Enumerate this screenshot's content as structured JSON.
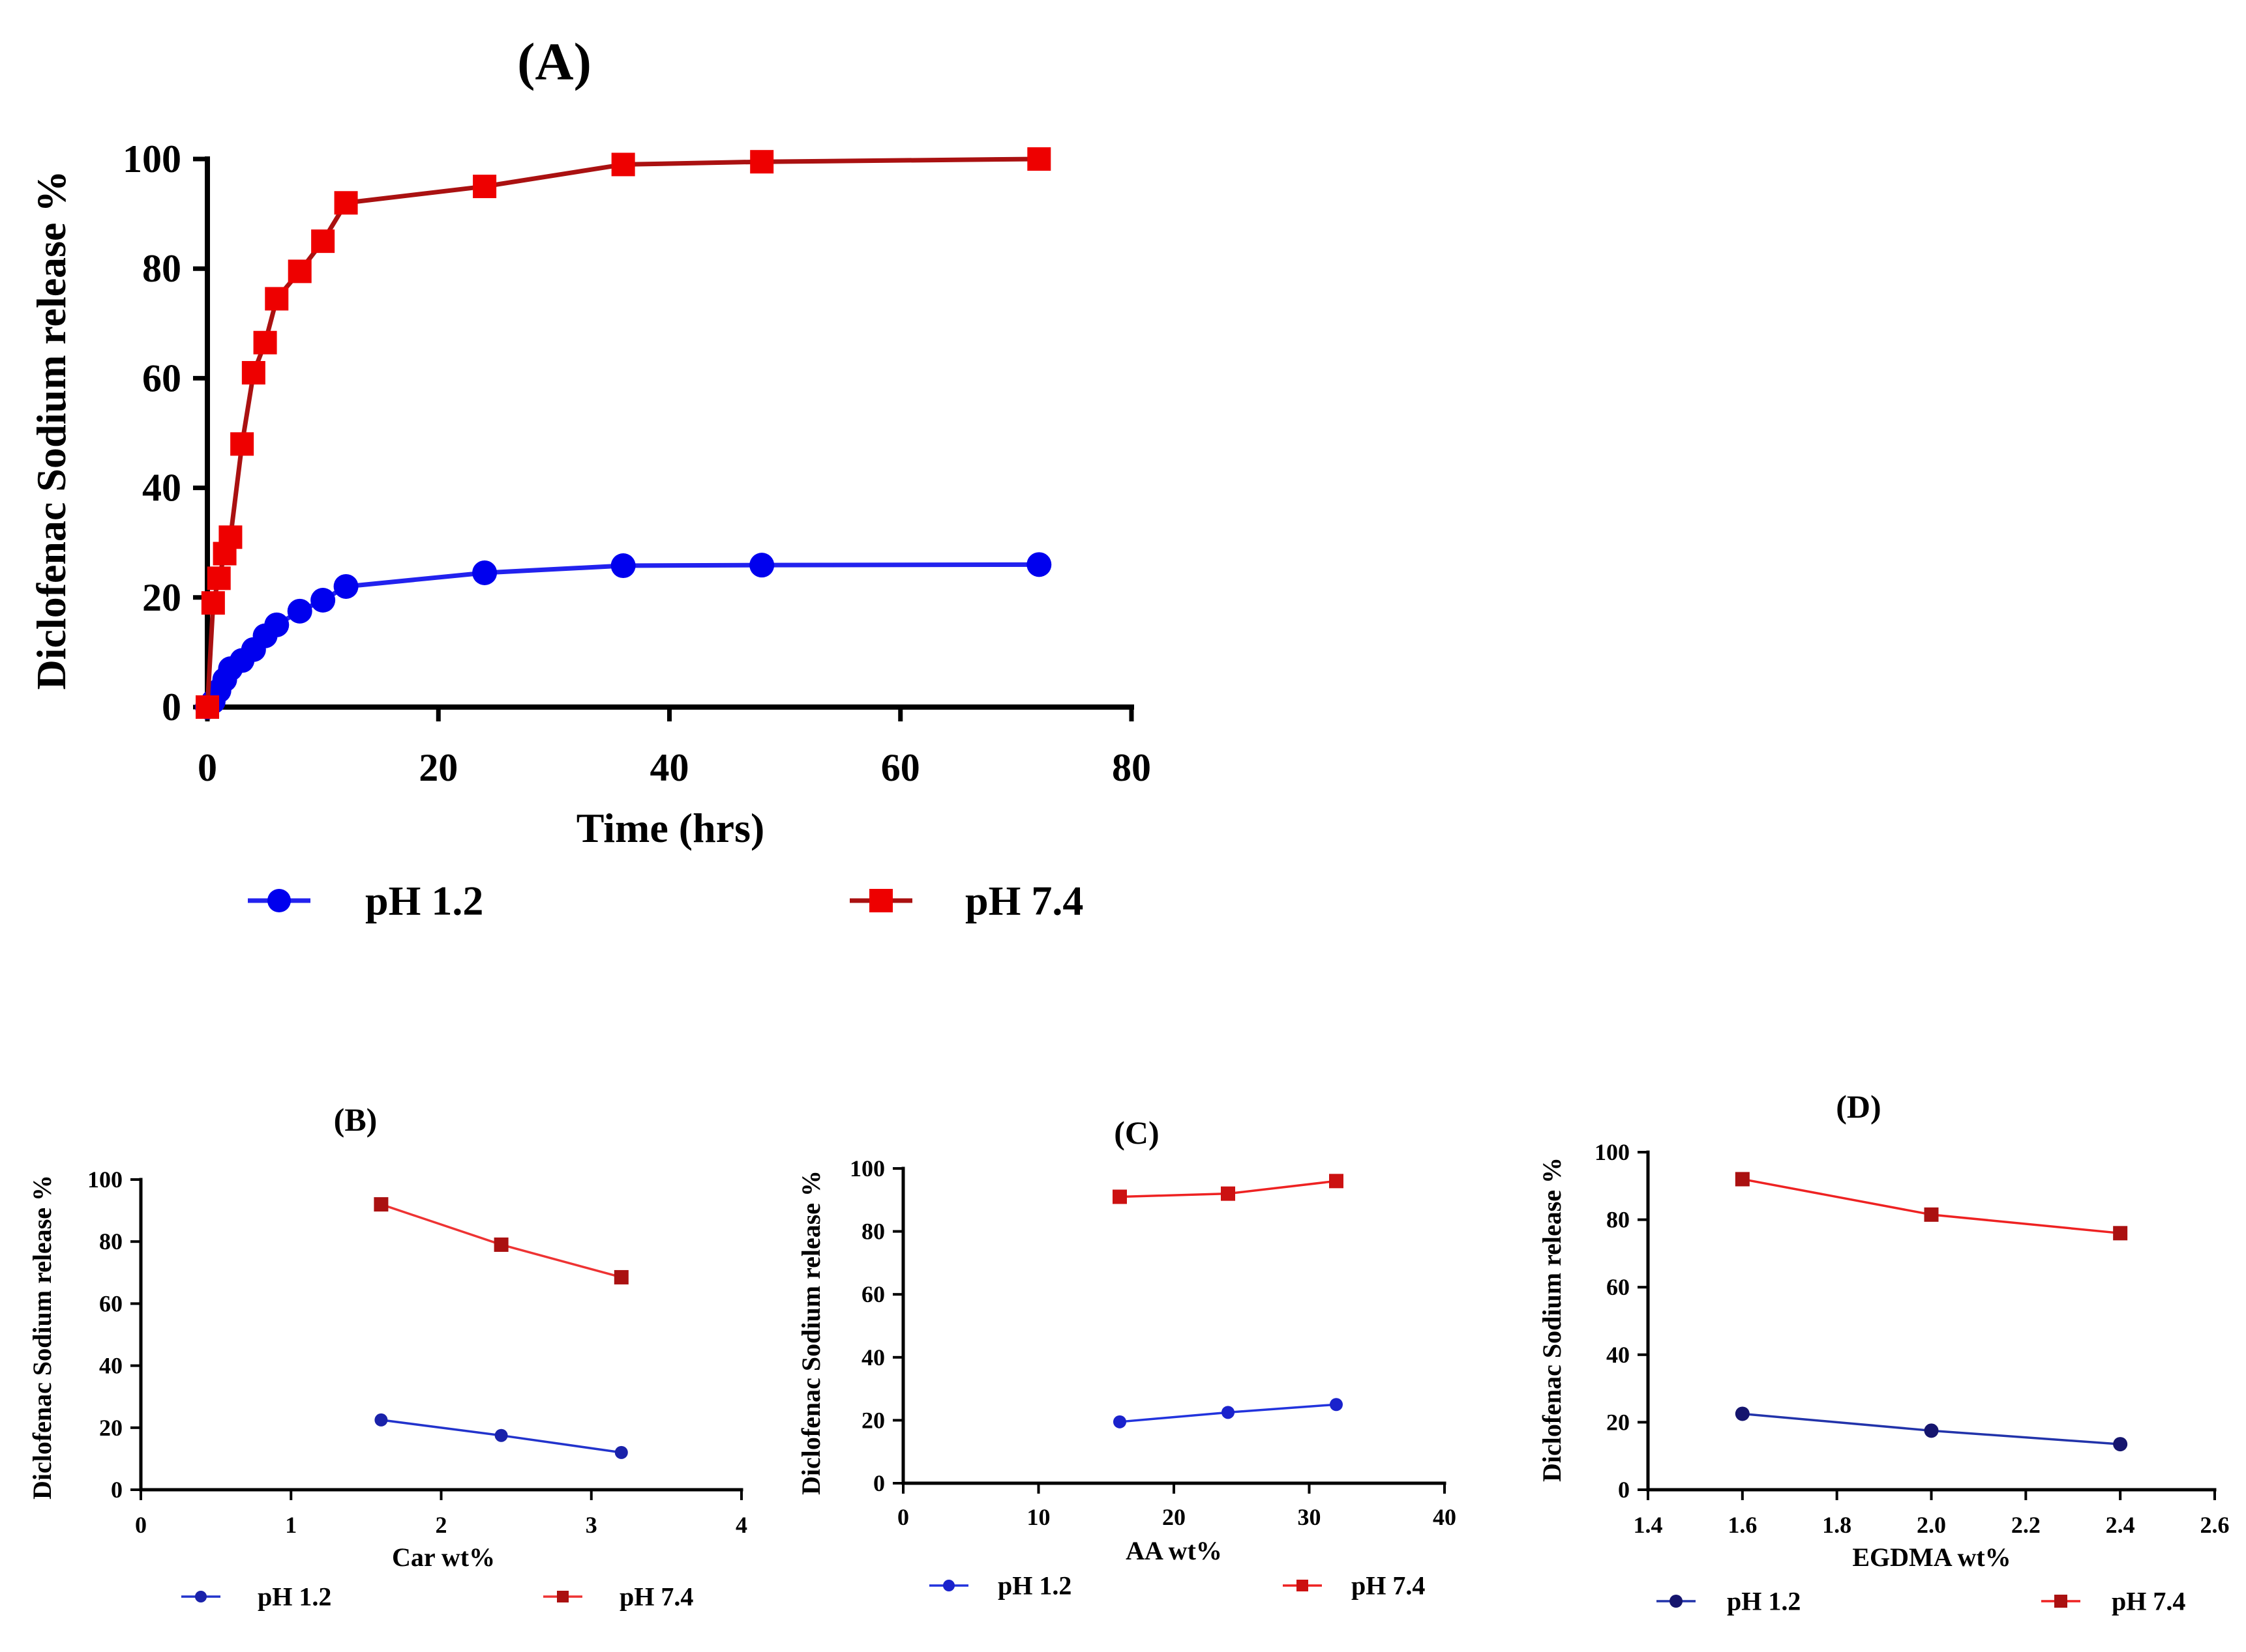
{
  "chart_data": [
    {
      "panel": "(A)",
      "type": "line",
      "title": "(A)",
      "xlabel": "Time (hrs)",
      "ylabel": "Diclofenac Sodium release %",
      "xlim": [
        0,
        80
      ],
      "ylim": [
        0,
        100
      ],
      "xticks": [
        0,
        20,
        40,
        60,
        80
      ],
      "yticks": [
        0,
        20,
        40,
        60,
        80,
        100
      ],
      "grid": false,
      "legend": "bottom",
      "series": [
        {
          "name": "pH 1.2",
          "color": "#0000ee",
          "line_color": "#2222ee",
          "marker": "circle",
          "x": [
            0,
            0.5,
            1,
            1.5,
            2,
            3,
            4,
            5,
            6,
            8,
            10,
            12,
            24,
            36,
            48,
            72
          ],
          "values": [
            0,
            1,
            3,
            5,
            7,
            8.5,
            10.5,
            13,
            15,
            17.5,
            19.5,
            22,
            24.5,
            25.8,
            25.9,
            26
          ]
        },
        {
          "name": "pH 7.4",
          "color": "#ee0000",
          "line_color": "#aa1111",
          "marker": "square",
          "x": [
            0,
            0.5,
            1,
            1.5,
            2,
            3,
            4,
            5,
            6,
            8,
            10,
            12,
            24,
            36,
            48,
            72
          ],
          "values": [
            0,
            19,
            23.5,
            28,
            31,
            48,
            61,
            66.5,
            74.5,
            79.5,
            85,
            92,
            95,
            99,
            99.5,
            100
          ]
        }
      ]
    },
    {
      "panel": "(B)",
      "type": "line",
      "title": "(B)",
      "xlabel": "Car wt%",
      "ylabel": "Diclofenac Sodium release %",
      "xlim": [
        0,
        4
      ],
      "ylim": [
        0,
        100
      ],
      "xticks": [
        0,
        1,
        2,
        3,
        4
      ],
      "yticks": [
        0,
        20,
        40,
        60,
        80,
        100
      ],
      "grid": false,
      "legend": "bottom",
      "series": [
        {
          "name": "pH 1.2",
          "color": "#1a22aa",
          "line_color": "#2233cc",
          "marker": "circle",
          "x": [
            1.6,
            2.4,
            3.2
          ],
          "values": [
            22.5,
            17.5,
            12
          ]
        },
        {
          "name": "pH 7.4",
          "color": "#aa1111",
          "line_color": "#ee3333",
          "marker": "square",
          "x": [
            1.6,
            2.4,
            3.2
          ],
          "values": [
            92,
            79,
            68.5
          ]
        }
      ]
    },
    {
      "panel": "(C)",
      "type": "line",
      "title": "(C)",
      "xlabel": "AA wt%",
      "ylabel": "Diclofenac Sodium release %",
      "xlim": [
        0,
        40
      ],
      "ylim": [
        0,
        100
      ],
      "xticks": [
        0,
        10,
        20,
        30,
        40
      ],
      "yticks": [
        0,
        20,
        40,
        60,
        80,
        100
      ],
      "grid": false,
      "legend": "bottom",
      "series": [
        {
          "name": "pH 1.2",
          "color": "#1a22cc",
          "line_color": "#2233dd",
          "marker": "circle",
          "x": [
            16,
            24,
            32
          ],
          "values": [
            19.5,
            22.5,
            25
          ]
        },
        {
          "name": "pH 7.4",
          "color": "#cc1111",
          "line_color": "#ee2222",
          "marker": "square",
          "x": [
            16,
            24,
            32
          ],
          "values": [
            91,
            92,
            96
          ]
        }
      ]
    },
    {
      "panel": "(D)",
      "type": "line",
      "title": "(D)",
      "xlabel": "EGDMA wt%",
      "ylabel": "Diclofenac Sodium release %",
      "xlim": [
        1.4,
        2.6
      ],
      "ylim": [
        0,
        100
      ],
      "xticks": [
        1.4,
        1.6,
        1.8,
        2.0,
        2.2,
        2.4,
        2.6
      ],
      "xtick_labels": [
        "1.4",
        "1.6",
        "1.8",
        "2.0",
        "2.2",
        "2.4",
        "2.6"
      ],
      "yticks": [
        0,
        20,
        40,
        60,
        80,
        100
      ],
      "grid": false,
      "legend": "bottom",
      "series": [
        {
          "name": "pH 1.2",
          "color": "#15156e",
          "line_color": "#2233aa",
          "marker": "circle",
          "x": [
            1.6,
            2.0,
            2.4
          ],
          "values": [
            22.5,
            17.5,
            13.5
          ]
        },
        {
          "name": "pH 7.4",
          "color": "#aa1111",
          "line_color": "#ee2222",
          "marker": "square",
          "x": [
            1.6,
            2.0,
            2.4
          ],
          "values": [
            92,
            81.5,
            76
          ]
        }
      ]
    }
  ]
}
